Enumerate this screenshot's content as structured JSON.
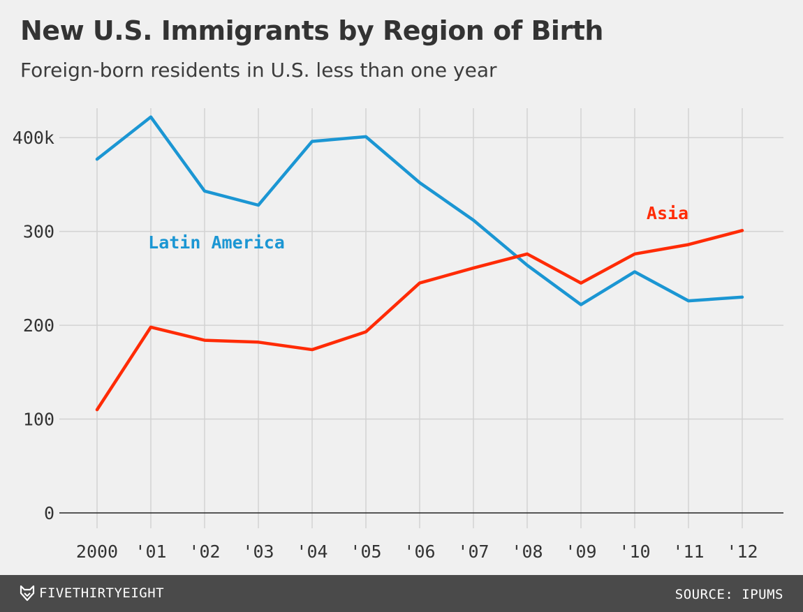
{
  "chart_data": {
    "type": "line",
    "title": "New U.S. Immigrants by Region of Birth",
    "subtitle": "Foreign-born residents in U.S. less than one year",
    "categories": [
      "2000",
      "'01",
      "'02",
      "'03",
      "'04",
      "'05",
      "'06",
      "'07",
      "'08",
      "'09",
      "'10",
      "'11",
      "'12"
    ],
    "series": [
      {
        "name": "Latin America",
        "color": "#1b96d3",
        "values": [
          377,
          422,
          343,
          328,
          396,
          401,
          352,
          312,
          264,
          222,
          257,
          226,
          230
        ]
      },
      {
        "name": "Asia",
        "color": "#ff2b06",
        "values": [
          110,
          198,
          184,
          182,
          174,
          193,
          245,
          261,
          276,
          245,
          276,
          286,
          301
        ]
      }
    ],
    "yticks": [
      "0",
      "100",
      "200",
      "300",
      "400k"
    ],
    "ytick_values": [
      0,
      100,
      200,
      300,
      400
    ],
    "ylim": [
      0,
      430
    ],
    "grid": true,
    "xlabel": "",
    "ylabel": ""
  },
  "footer": {
    "brand": "FIVETHIRTYEIGHT",
    "source": "SOURCE: IPUMS"
  },
  "brand_icon": "fox-icon"
}
